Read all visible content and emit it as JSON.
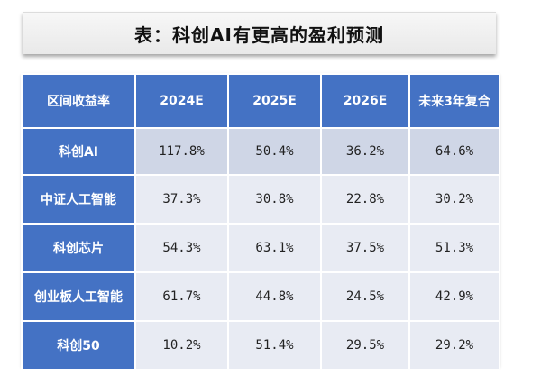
{
  "title": "表：科创AI有更高的盈利预测",
  "table": {
    "headers": [
      "区间收益率",
      "2024E",
      "2025E",
      "2026E",
      "未来3年复合"
    ],
    "rows": [
      {
        "name": "科创AI",
        "values": [
          "117.8%",
          "50.4%",
          "36.2%",
          "64.6%"
        ]
      },
      {
        "name": "中证人工智能",
        "values": [
          "37.3%",
          "30.8%",
          "22.8%",
          "30.2%"
        ]
      },
      {
        "name": "科创芯片",
        "values": [
          "54.3%",
          "63.1%",
          "37.5%",
          "51.3%"
        ]
      },
      {
        "name": "创业板人工智能",
        "values": [
          "61.7%",
          "44.8%",
          "24.5%",
          "42.9%"
        ]
      },
      {
        "name": "科创50",
        "values": [
          "10.2%",
          "51.4%",
          "29.5%",
          "29.2%"
        ]
      }
    ]
  },
  "colors": {
    "header_bg": "#4472c4",
    "row_odd_bg": "#cfd6e6",
    "row_even_bg": "#e8ebf3"
  }
}
